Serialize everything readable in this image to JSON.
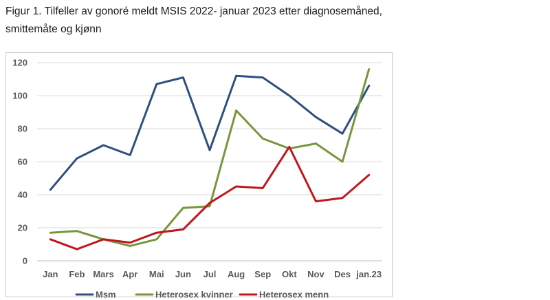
{
  "caption": {
    "line1": "Figur 1. Tilfeller av gonoré meldt MSIS 2022- januar 2023 etter diagnosemåned,",
    "line2": "smittemåte og kjønn"
  },
  "chart_data": {
    "type": "line",
    "title": "",
    "xlabel": "",
    "ylabel": "",
    "categories": [
      "Jan",
      "Feb",
      "Mars",
      "Apr",
      "Mai",
      "Jun",
      "Jul",
      "Aug",
      "Sep",
      "Okt",
      "Nov",
      "Des",
      "jan.23"
    ],
    "ylim": [
      0,
      120
    ],
    "yticks": [
      0,
      20,
      40,
      60,
      80,
      100,
      120
    ],
    "grid": true,
    "legend_position": "bottom",
    "series": [
      {
        "name": "Msm",
        "color": "#2E4F7F",
        "values": [
          43,
          62,
          70,
          64,
          107,
          111,
          67,
          112,
          111,
          100,
          87,
          77,
          106
        ]
      },
      {
        "name": "Heterosex kvinner",
        "color": "#77963C",
        "values": [
          17,
          18,
          13,
          9,
          13,
          32,
          33,
          91,
          74,
          68,
          71,
          60,
          116
        ]
      },
      {
        "name": "Heterosex menn",
        "color": "#C0171E",
        "values": [
          13,
          7,
          13,
          11,
          17,
          19,
          35,
          45,
          44,
          69,
          36,
          38,
          52
        ]
      }
    ]
  }
}
